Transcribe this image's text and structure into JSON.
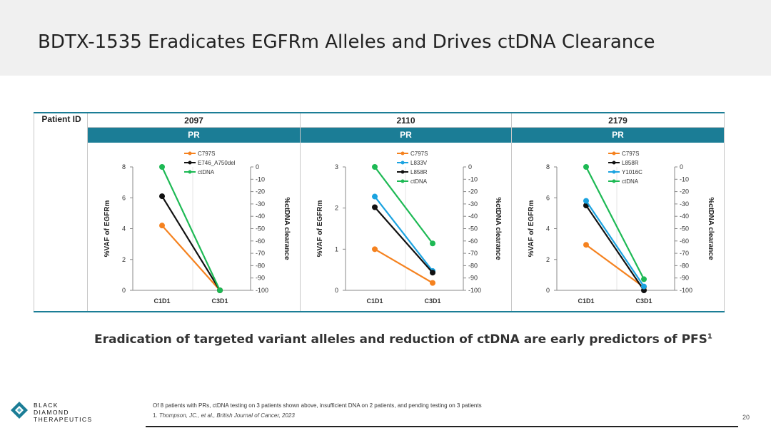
{
  "title": "BDTX-1535 Eradicates EGFRm Alleles and Drives ctDNA Clearance",
  "table": {
    "patient_id_label": "Patient ID",
    "patients": [
      {
        "id": "2097",
        "response": "PR"
      },
      {
        "id": "2110",
        "response": "PR"
      },
      {
        "id": "2179",
        "response": "PR"
      }
    ]
  },
  "subtitle": {
    "text": "Eradication of targeted variant alleles and reduction of ctDNA are early predictors of PFS",
    "superscript": "1"
  },
  "footnotes": {
    "note": "Of 8 patients with PRs, ctDNA testing on 3 patients shown above, insufficient DNA on 2 patients, and pending testing on 3 patients",
    "ref_prefix": "1.",
    "ref_text": "Thompson, JC., et al., British Journal of Cancer, 2023"
  },
  "page_number": "20",
  "logo": {
    "line1": "BLACK",
    "line2": "DIAMOND",
    "line3": "THERAPEUTICS",
    "icon": "diamond-logo-icon"
  },
  "colors": {
    "header_bg": "#f0f0f0",
    "accent": "#1b7d96",
    "C797S": "#f5821f",
    "E746_A750del": "#111111",
    "L858R": "#111111",
    "L833V": "#1ba3e0",
    "Y1016C": "#1ba3e0",
    "ctDNA": "#1db954"
  },
  "chart_data": [
    {
      "type": "line",
      "patient": "2097",
      "categories": [
        "C1D1",
        "C3D1"
      ],
      "ylabel": "%VAF of EGFRm",
      "y2label": "%ctDNA clearance",
      "ylim": [
        0,
        8
      ],
      "yticks": [
        0,
        2,
        4,
        6,
        8
      ],
      "y2lim": [
        -100,
        0
      ],
      "y2ticks": [
        0,
        -10,
        -20,
        -30,
        -40,
        -50,
        -60,
        -70,
        -80,
        -90,
        -100
      ],
      "legend_position": "top-right",
      "series": [
        {
          "name": "C797S",
          "axis": "left",
          "color": "#f5821f",
          "values": [
            4.2,
            0
          ]
        },
        {
          "name": "E746_A750del",
          "axis": "left",
          "color": "#111111",
          "values": [
            6.1,
            0
          ]
        },
        {
          "name": "ctDNA",
          "axis": "right",
          "color": "#1db954",
          "values": [
            0,
            -100
          ]
        }
      ]
    },
    {
      "type": "line",
      "patient": "2110",
      "categories": [
        "C1D1",
        "C3D1"
      ],
      "ylabel": "%VAF of EGFRm",
      "y2label": "%ctDNA clearance",
      "ylim": [
        0,
        3
      ],
      "yticks": [
        0,
        1,
        2,
        3
      ],
      "y2lim": [
        -100,
        0
      ],
      "y2ticks": [
        0,
        -10,
        -20,
        -30,
        -40,
        -50,
        -60,
        -70,
        -80,
        -90,
        -100
      ],
      "legend_position": "top-right",
      "series": [
        {
          "name": "C797S",
          "axis": "left",
          "color": "#f5821f",
          "values": [
            1.0,
            0.18
          ]
        },
        {
          "name": "L833V",
          "axis": "left",
          "color": "#1ba3e0",
          "values": [
            2.28,
            0.47
          ]
        },
        {
          "name": "L858R",
          "axis": "left",
          "color": "#111111",
          "values": [
            2.02,
            0.43
          ]
        },
        {
          "name": "ctDNA",
          "axis": "right",
          "color": "#1db954",
          "values": [
            0,
            -62
          ]
        }
      ]
    },
    {
      "type": "line",
      "patient": "2179",
      "categories": [
        "C1D1",
        "C3D1"
      ],
      "ylabel": "%VAF of EGFRm",
      "y2label": "%ctDNA clearance",
      "ylim": [
        0,
        8
      ],
      "yticks": [
        0,
        2,
        4,
        6,
        8
      ],
      "y2lim": [
        -100,
        0
      ],
      "y2ticks": [
        0,
        -10,
        -20,
        -30,
        -40,
        -50,
        -60,
        -70,
        -80,
        -90,
        -100
      ],
      "legend_position": "top-right",
      "series": [
        {
          "name": "C797S",
          "axis": "left",
          "color": "#f5821f",
          "values": [
            2.95,
            0.2
          ]
        },
        {
          "name": "L858R",
          "axis": "left",
          "color": "#111111",
          "values": [
            5.5,
            0
          ]
        },
        {
          "name": "Y1016C",
          "axis": "left",
          "color": "#1ba3e0",
          "values": [
            5.8,
            0.25
          ]
        },
        {
          "name": "ctDNA",
          "axis": "right",
          "color": "#1db954",
          "values": [
            0,
            -91
          ]
        }
      ]
    }
  ]
}
